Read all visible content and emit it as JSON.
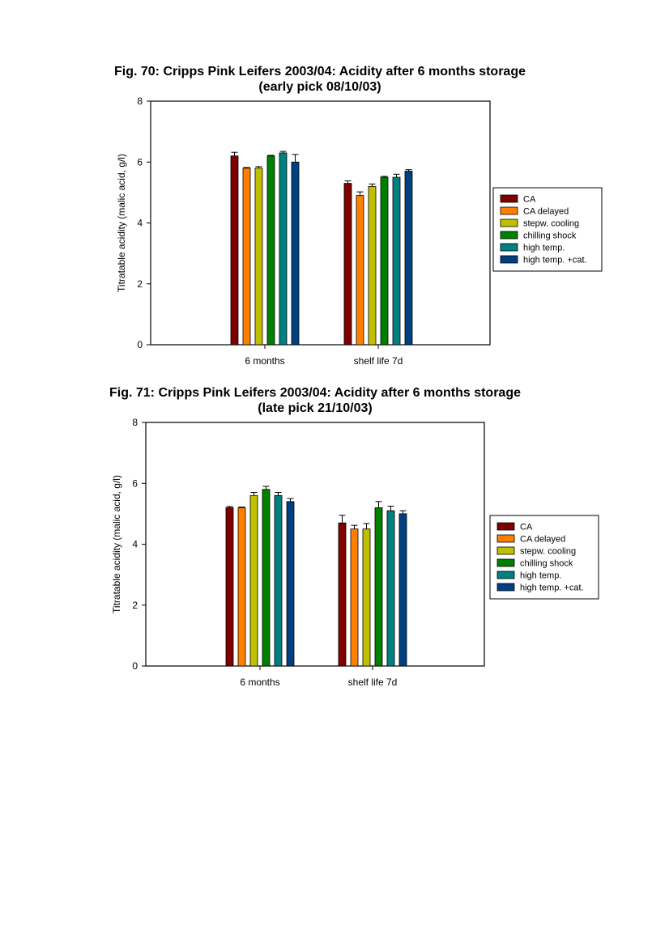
{
  "legend": [
    {
      "label": "CA",
      "color": "#800000"
    },
    {
      "label": "CA delayed",
      "color": "#ff8000"
    },
    {
      "label": "stepw. cooling",
      "color": "#c0c000"
    },
    {
      "label": "chilling shock",
      "color": "#008000"
    },
    {
      "label": "high temp.",
      "color": "#008080"
    },
    {
      "label": "high temp. +cat.",
      "color": "#004080"
    }
  ],
  "chart_data": [
    {
      "type": "bar",
      "title": "Fig. 70: Cripps Pink Leifers 2003/04: Acidity after 6 months storage",
      "subtitle": "(early pick 08/10/03)",
      "xlabel": "",
      "ylabel": "Titratable acidity (malic acid, g/l)",
      "ylim": [
        0,
        8
      ],
      "yticks": [
        "0",
        "2",
        "4",
        "6",
        "8"
      ],
      "categories": [
        "6 months",
        "shelf life 7d"
      ],
      "legend_position": "right",
      "series": [
        {
          "name": "CA",
          "values": [
            6.2,
            5.3
          ],
          "errors": [
            0.12,
            0.08
          ]
        },
        {
          "name": "CA delayed",
          "values": [
            5.8,
            4.9
          ],
          "errors": [
            0.02,
            0.12
          ]
        },
        {
          "name": "stepw. cooling",
          "values": [
            5.8,
            5.2
          ],
          "errors": [
            0.05,
            0.08
          ]
        },
        {
          "name": "chilling shock",
          "values": [
            6.2,
            5.5
          ],
          "errors": [
            0.02,
            0.03
          ]
        },
        {
          "name": "high temp.",
          "values": [
            6.3,
            5.5
          ],
          "errors": [
            0.05,
            0.1
          ]
        },
        {
          "name": "high temp. +cat.",
          "values": [
            6.0,
            5.7
          ],
          "errors": [
            0.25,
            0.05
          ]
        }
      ]
    },
    {
      "type": "bar",
      "title": "Fig. 71: Cripps Pink Leifers 2003/04: Acidity after 6 months storage",
      "subtitle": "(late pick 21/10/03)",
      "xlabel": "",
      "ylabel": "Titratable acidity (malic acid, g/l)",
      "ylim": [
        0,
        8
      ],
      "yticks": [
        "0",
        "2",
        "4",
        "6",
        "8"
      ],
      "categories": [
        "6 months",
        "shelf life 7d"
      ],
      "legend_position": "right",
      "series": [
        {
          "name": "CA",
          "values": [
            5.2,
            4.7
          ],
          "errors": [
            0.04,
            0.25
          ]
        },
        {
          "name": "CA delayed",
          "values": [
            5.2,
            4.5
          ],
          "errors": [
            0.02,
            0.12
          ]
        },
        {
          "name": "stepw. cooling",
          "values": [
            5.6,
            4.5
          ],
          "errors": [
            0.1,
            0.18
          ]
        },
        {
          "name": "chilling shock",
          "values": [
            5.8,
            5.2
          ],
          "errors": [
            0.1,
            0.2
          ]
        },
        {
          "name": "high temp.",
          "values": [
            5.6,
            5.1
          ],
          "errors": [
            0.1,
            0.15
          ]
        },
        {
          "name": "high temp. +cat.",
          "values": [
            5.4,
            5.0
          ],
          "errors": [
            0.1,
            0.1
          ]
        }
      ]
    }
  ]
}
